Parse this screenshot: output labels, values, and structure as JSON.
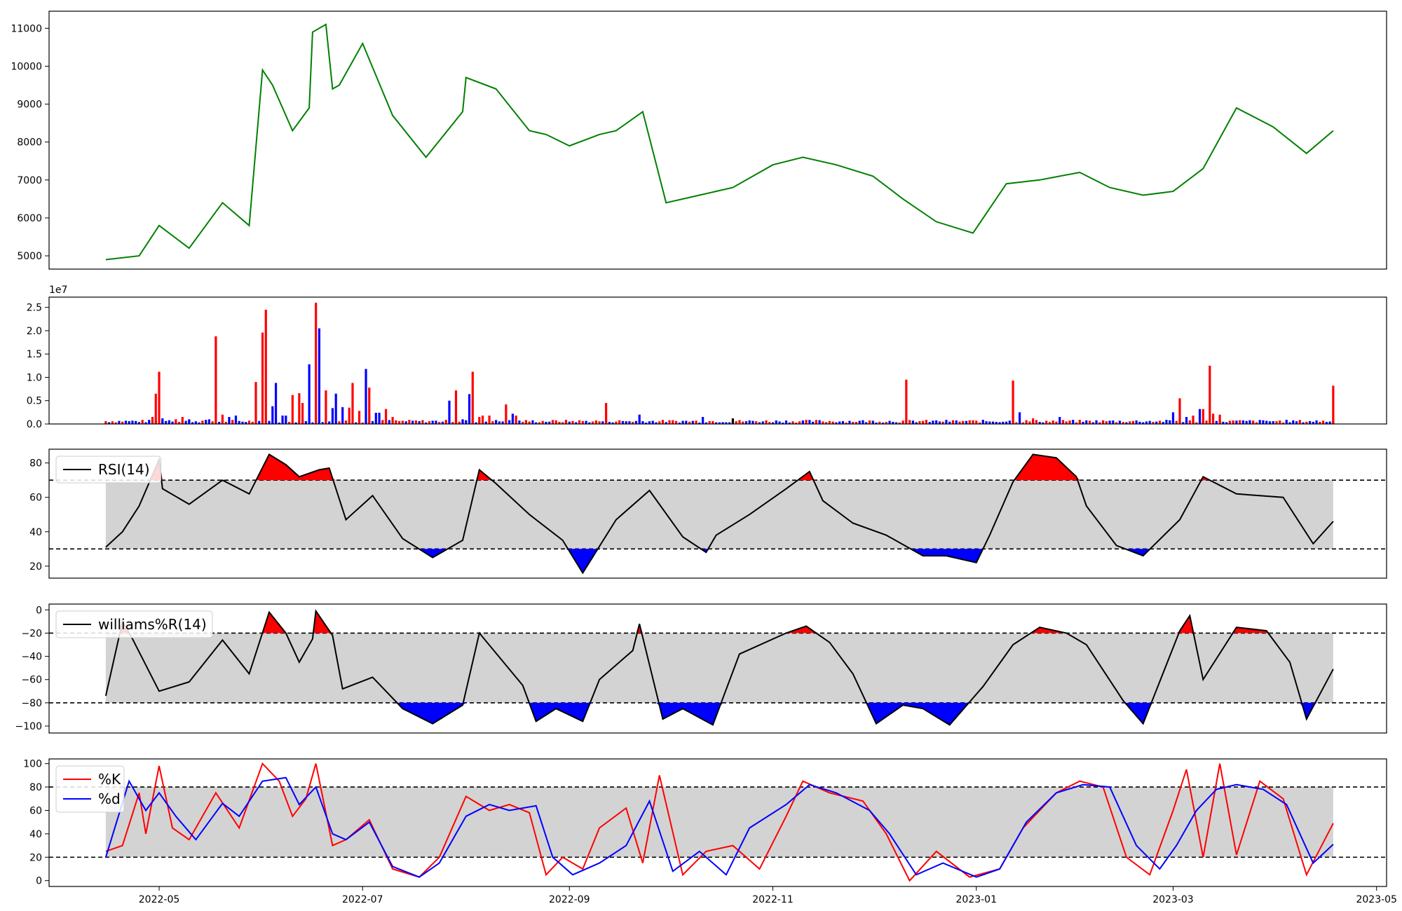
{
  "chart_data": [
    {
      "type": "line",
      "series": [
        {
          "color": "#008000",
          "x": [
            "2022-04-15",
            "2022-04-25",
            "2022-05-01",
            "2022-05-10",
            "2022-05-20",
            "2022-05-28",
            "2022-06-01",
            "2022-06-04",
            "2022-06-10",
            "2022-06-15",
            "2022-06-16",
            "2022-06-20",
            "2022-06-22",
            "2022-06-24",
            "2022-07-01",
            "2022-07-10",
            "2022-07-20",
            "2022-07-31",
            "2022-08-01",
            "2022-08-10",
            "2022-08-20",
            "2022-08-25",
            "2022-09-01",
            "2022-09-10",
            "2022-09-15",
            "2022-09-23",
            "2022-09-30",
            "2022-10-10",
            "2022-10-20",
            "2022-11-01",
            "2022-11-10",
            "2022-11-20",
            "2022-12-01",
            "2022-12-10",
            "2022-12-20",
            "2022-12-31",
            "2023-01-10",
            "2023-01-20",
            "2023-02-01",
            "2023-02-10",
            "2023-02-20",
            "2023-03-01",
            "2023-03-10",
            "2023-03-20",
            "2023-03-31",
            "2023-04-10",
            "2023-04-18"
          ],
          "y": [
            4900,
            5000,
            5800,
            5200,
            6400,
            5800,
            9900,
            9500,
            8300,
            8900,
            10900,
            11100,
            9400,
            9500,
            10600,
            8700,
            7600,
            8800,
            9700,
            9400,
            8300,
            8200,
            7900,
            8200,
            8300,
            8800,
            6400,
            6600,
            6800,
            7400,
            7600,
            7400,
            7100,
            6500,
            5900,
            5600,
            6900,
            7000,
            7200,
            6800,
            6600,
            6700,
            7300,
            8900,
            8400,
            7700,
            8300
          ],
          "ylim": [
            4650,
            11450
          ]
        }
      ],
      "yticks": [
        "5000",
        "6000",
        "7000",
        "8000",
        "9000",
        "10000",
        "11000"
      ]
    },
    {
      "type": "bar",
      "scale_label": "1e7",
      "up_color": "#ff0000",
      "down_color": "#0000ff",
      "ylim": [
        0,
        2.72
      ],
      "yticks": [
        "0.0",
        "0.5",
        "1.0",
        "1.5",
        "2.0",
        "2.5"
      ],
      "volumes": [
        [
          "2022-04-29",
          0.15,
          "r"
        ],
        [
          "2022-04-30",
          0.65,
          "r"
        ],
        [
          "2022-05-01",
          1.12,
          "r"
        ],
        [
          "2022-05-02",
          0.12,
          "b"
        ],
        [
          "2022-05-04",
          0.08,
          "b"
        ],
        [
          "2022-05-06",
          0.1,
          "r"
        ],
        [
          "2022-05-08",
          0.15,
          "r"
        ],
        [
          "2022-05-10",
          0.1,
          "b"
        ],
        [
          "2022-05-16",
          0.1,
          "b"
        ],
        [
          "2022-05-18",
          1.88,
          "r"
        ],
        [
          "2022-05-20",
          0.2,
          "r"
        ],
        [
          "2022-05-22",
          0.15,
          "b"
        ],
        [
          "2022-05-24",
          0.18,
          "b"
        ],
        [
          "2022-05-30",
          0.9,
          "r"
        ],
        [
          "2022-06-01",
          1.96,
          "r"
        ],
        [
          "2022-06-02",
          2.45,
          "r"
        ],
        [
          "2022-06-04",
          0.38,
          "b"
        ],
        [
          "2022-06-05",
          0.88,
          "b"
        ],
        [
          "2022-06-07",
          0.18,
          "b"
        ],
        [
          "2022-06-08",
          0.18,
          "b"
        ],
        [
          "2022-06-10",
          0.62,
          "r"
        ],
        [
          "2022-06-12",
          0.66,
          "r"
        ],
        [
          "2022-06-13",
          0.45,
          "r"
        ],
        [
          "2022-06-15",
          1.28,
          "b"
        ],
        [
          "2022-06-17",
          2.6,
          "r"
        ],
        [
          "2022-06-18",
          2.05,
          "b"
        ],
        [
          "2022-06-20",
          0.72,
          "r"
        ],
        [
          "2022-06-22",
          0.34,
          "b"
        ],
        [
          "2022-06-23",
          0.65,
          "b"
        ],
        [
          "2022-06-25",
          0.36,
          "b"
        ],
        [
          "2022-06-27",
          0.35,
          "r"
        ],
        [
          "2022-06-28",
          0.88,
          "r"
        ],
        [
          "2022-06-30",
          0.28,
          "r"
        ],
        [
          "2022-07-02",
          1.18,
          "b"
        ],
        [
          "2022-07-03",
          0.78,
          "r"
        ],
        [
          "2022-07-05",
          0.24,
          "b"
        ],
        [
          "2022-07-06",
          0.24,
          "b"
        ],
        [
          "2022-07-08",
          0.32,
          "r"
        ],
        [
          "2022-07-10",
          0.15,
          "r"
        ],
        [
          "2022-07-27",
          0.5,
          "b"
        ],
        [
          "2022-07-29",
          0.72,
          "r"
        ],
        [
          "2022-07-31",
          0.1,
          "b"
        ],
        [
          "2022-08-02",
          0.64,
          "b"
        ],
        [
          "2022-08-03",
          1.12,
          "r"
        ],
        [
          "2022-08-05",
          0.15,
          "r"
        ],
        [
          "2022-08-06",
          0.18,
          "r"
        ],
        [
          "2022-08-08",
          0.18,
          "r"
        ],
        [
          "2022-08-13",
          0.42,
          "r"
        ],
        [
          "2022-08-15",
          0.22,
          "b"
        ],
        [
          "2022-08-16",
          0.18,
          "r"
        ],
        [
          "2022-09-12",
          0.45,
          "r"
        ],
        [
          "2022-09-22",
          0.2,
          "b"
        ],
        [
          "2022-10-11",
          0.15,
          "b"
        ],
        [
          "2022-10-20",
          0.12,
          "k"
        ],
        [
          "2022-12-11",
          0.95,
          "r"
        ],
        [
          "2023-01-12",
          0.93,
          "r"
        ],
        [
          "2023-01-14",
          0.25,
          "b"
        ],
        [
          "2023-01-18",
          0.12,
          "r"
        ],
        [
          "2023-01-26",
          0.15,
          "b"
        ],
        [
          "2023-03-01",
          0.25,
          "b"
        ],
        [
          "2023-03-03",
          0.55,
          "r"
        ],
        [
          "2023-03-05",
          0.15,
          "b"
        ],
        [
          "2023-03-07",
          0.18,
          "r"
        ],
        [
          "2023-03-09",
          0.32,
          "b"
        ],
        [
          "2023-03-10",
          0.32,
          "r"
        ],
        [
          "2023-03-12",
          1.25,
          "r"
        ],
        [
          "2023-03-13",
          0.22,
          "r"
        ],
        [
          "2023-03-15",
          0.2,
          "r"
        ],
        [
          "2023-04-18",
          0.82,
          "r"
        ]
      ]
    },
    {
      "type": "line",
      "legend": "RSI(14)",
      "thresholds": [
        70,
        30
      ],
      "ylim": [
        13,
        88
      ],
      "yticks": [
        "20",
        "40",
        "60",
        "80"
      ],
      "shade_range": [
        30,
        70
      ],
      "x": [
        "2022-04-15",
        "2022-04-20",
        "2022-04-25",
        "2022-05-01",
        "2022-05-02",
        "2022-05-10",
        "2022-05-20",
        "2022-05-28",
        "2022-06-03",
        "2022-06-08",
        "2022-06-12",
        "2022-06-18",
        "2022-06-21",
        "2022-06-26",
        "2022-07-04",
        "2022-07-13",
        "2022-07-22",
        "2022-07-31",
        "2022-08-05",
        "2022-08-10",
        "2022-08-20",
        "2022-08-30",
        "2022-09-05",
        "2022-09-15",
        "2022-09-25",
        "2022-10-05",
        "2022-10-12",
        "2022-10-15",
        "2022-10-25",
        "2022-11-05",
        "2022-11-12",
        "2022-11-16",
        "2022-11-25",
        "2022-12-05",
        "2022-12-16",
        "2022-12-23",
        "2023-01-01",
        "2023-01-05",
        "2023-01-12",
        "2023-01-18",
        "2023-01-25",
        "2023-01-31",
        "2023-02-03",
        "2023-02-12",
        "2023-02-20",
        "2023-03-03",
        "2023-03-10",
        "2023-03-20",
        "2023-04-03",
        "2023-04-12",
        "2023-04-18"
      ],
      "y": [
        31,
        40,
        55,
        82,
        65,
        56,
        70,
        62,
        85,
        79,
        72,
        76,
        77,
        47,
        61,
        36,
        25,
        35,
        76,
        68,
        50,
        35,
        16,
        47,
        64,
        37,
        28,
        38,
        50,
        65,
        75,
        58,
        45,
        38,
        26,
        26,
        22,
        38,
        69,
        85,
        83,
        72,
        55,
        32,
        26,
        47,
        72,
        62,
        60,
        33,
        46
      ]
    },
    {
      "type": "line",
      "legend": "williams%R(14)",
      "thresholds": [
        -20,
        -80
      ],
      "ylim": [
        -106,
        5
      ],
      "yticks": [
        "0",
        "−20",
        "−40",
        "−60",
        "−80",
        "−100"
      ],
      "shade_range": [
        -80,
        -20
      ],
      "x": [
        "2022-04-15",
        "2022-04-20",
        "2022-04-23",
        "2022-05-01",
        "2022-05-10",
        "2022-05-20",
        "2022-05-28",
        "2022-06-03",
        "2022-06-08",
        "2022-06-12",
        "2022-06-16",
        "2022-06-17",
        "2022-06-22",
        "2022-06-25",
        "2022-07-04",
        "2022-07-13",
        "2022-07-22",
        "2022-07-31",
        "2022-08-05",
        "2022-08-18",
        "2022-08-22",
        "2022-08-28",
        "2022-09-05",
        "2022-09-10",
        "2022-09-20",
        "2022-09-22",
        "2022-09-29",
        "2022-10-05",
        "2022-10-14",
        "2022-10-22",
        "2022-11-05",
        "2022-11-11",
        "2022-11-18",
        "2022-11-25",
        "2022-12-02",
        "2022-12-10",
        "2022-12-16",
        "2022-12-24",
        "2023-01-03",
        "2023-01-12",
        "2023-01-20",
        "2023-01-28",
        "2023-02-03",
        "2023-02-14",
        "2023-02-20",
        "2023-03-03",
        "2023-03-06",
        "2023-03-10",
        "2023-03-20",
        "2023-03-29",
        "2023-04-05",
        "2023-04-10",
        "2023-04-18"
      ],
      "y": [
        -74,
        -10,
        -25,
        -70,
        -62,
        -26,
        -55,
        -2,
        -20,
        -45,
        -25,
        -1,
        -22,
        -68,
        -58,
        -85,
        -98,
        -82,
        -20,
        -65,
        -96,
        -85,
        -96,
        -60,
        -35,
        -12,
        -94,
        -85,
        -99,
        -38,
        -20,
        -14,
        -28,
        -55,
        -98,
        -82,
        -85,
        -99,
        -66,
        -30,
        -15,
        -20,
        -30,
        -78,
        -98,
        -18,
        -5,
        -60,
        -15,
        -18,
        -45,
        -94,
        -51
      ]
    },
    {
      "type": "line",
      "thresholds": [
        80,
        20
      ],
      "ylim": [
        -5,
        104
      ],
      "yticks": [
        "0",
        "20",
        "40",
        "60",
        "80",
        "100"
      ],
      "shade_range": [
        20,
        80
      ],
      "series": [
        {
          "name": "%K",
          "color": "#ff0000",
          "x": [
            "2022-04-15",
            "2022-04-20",
            "2022-04-25",
            "2022-04-27",
            "2022-05-01",
            "2022-05-05",
            "2022-05-10",
            "2022-05-18",
            "2022-05-25",
            "2022-06-01",
            "2022-06-06",
            "2022-06-10",
            "2022-06-14",
            "2022-06-17",
            "2022-06-22",
            "2022-06-26",
            "2022-07-03",
            "2022-07-10",
            "2022-07-18",
            "2022-07-24",
            "2022-08-01",
            "2022-08-08",
            "2022-08-14",
            "2022-08-20",
            "2022-08-25",
            "2022-08-30",
            "2022-09-05",
            "2022-09-10",
            "2022-09-18",
            "2022-09-23",
            "2022-09-28",
            "2022-10-05",
            "2022-10-12",
            "2022-10-20",
            "2022-10-28",
            "2022-11-05",
            "2022-11-10",
            "2022-11-18",
            "2022-11-28",
            "2022-12-05",
            "2022-12-12",
            "2022-12-20",
            "2022-12-30",
            "2023-01-08",
            "2023-01-15",
            "2023-01-25",
            "2023-02-01",
            "2023-02-08",
            "2023-02-15",
            "2023-02-22",
            "2023-03-01",
            "2023-03-05",
            "2023-03-10",
            "2023-03-15",
            "2023-03-20",
            "2023-03-27",
            "2023-04-03",
            "2023-04-10",
            "2023-04-18"
          ],
          "y": [
            25,
            30,
            75,
            40,
            98,
            45,
            35,
            75,
            45,
            100,
            85,
            55,
            70,
            100,
            30,
            35,
            52,
            10,
            3,
            20,
            72,
            60,
            65,
            58,
            5,
            20,
            10,
            45,
            62,
            15,
            90,
            5,
            25,
            30,
            10,
            55,
            85,
            75,
            68,
            40,
            0,
            25,
            3,
            10,
            45,
            75,
            85,
            80,
            20,
            5,
            60,
            95,
            20,
            100,
            22,
            85,
            70,
            5,
            49
          ]
        },
        {
          "name": "%d",
          "color": "#0000ff",
          "x": [
            "2022-04-15",
            "2022-04-22",
            "2022-04-27",
            "2022-05-01",
            "2022-05-06",
            "2022-05-12",
            "2022-05-20",
            "2022-05-25",
            "2022-06-01",
            "2022-06-08",
            "2022-06-12",
            "2022-06-17",
            "2022-06-22",
            "2022-06-26",
            "2022-07-03",
            "2022-07-10",
            "2022-07-18",
            "2022-07-24",
            "2022-08-01",
            "2022-08-08",
            "2022-08-14",
            "2022-08-22",
            "2022-08-27",
            "2022-09-02",
            "2022-09-10",
            "2022-09-18",
            "2022-09-25",
            "2022-10-02",
            "2022-10-10",
            "2022-10-18",
            "2022-10-25",
            "2022-11-05",
            "2022-11-12",
            "2022-11-20",
            "2022-11-30",
            "2022-12-06",
            "2022-12-14",
            "2022-12-22",
            "2023-01-01",
            "2023-01-08",
            "2023-01-16",
            "2023-01-25",
            "2023-02-02",
            "2023-02-10",
            "2023-02-18",
            "2023-02-25",
            "2023-03-02",
            "2023-03-08",
            "2023-03-14",
            "2023-03-20",
            "2023-03-28",
            "2023-04-04",
            "2023-04-12",
            "2023-04-18"
          ],
          "y": [
            20,
            85,
            60,
            75,
            55,
            35,
            66,
            55,
            85,
            88,
            65,
            80,
            40,
            35,
            50,
            12,
            3,
            15,
            55,
            65,
            60,
            64,
            20,
            5,
            15,
            30,
            68,
            8,
            25,
            5,
            45,
            65,
            82,
            75,
            60,
            40,
            5,
            15,
            3,
            10,
            50,
            75,
            82,
            80,
            30,
            10,
            30,
            60,
            78,
            82,
            78,
            65,
            15,
            31
          ]
        }
      ]
    }
  ],
  "date_axis": {
    "min": "2022-03-29",
    "max": "2023-05-04",
    "ticks": [
      {
        "date": "2022-05-01",
        "label": "2022-05"
      },
      {
        "date": "2022-07-01",
        "label": "2022-07"
      },
      {
        "date": "2022-09-01",
        "label": "2022-09"
      },
      {
        "date": "2022-11-01",
        "label": "2022-11"
      },
      {
        "date": "2023-01-01",
        "label": "2023-01"
      },
      {
        "date": "2023-03-01",
        "label": "2023-03"
      },
      {
        "date": "2023-05-01",
        "label": "2023-05"
      }
    ],
    "data_start": "2022-04-15",
    "data_end": "2023-04-18"
  }
}
